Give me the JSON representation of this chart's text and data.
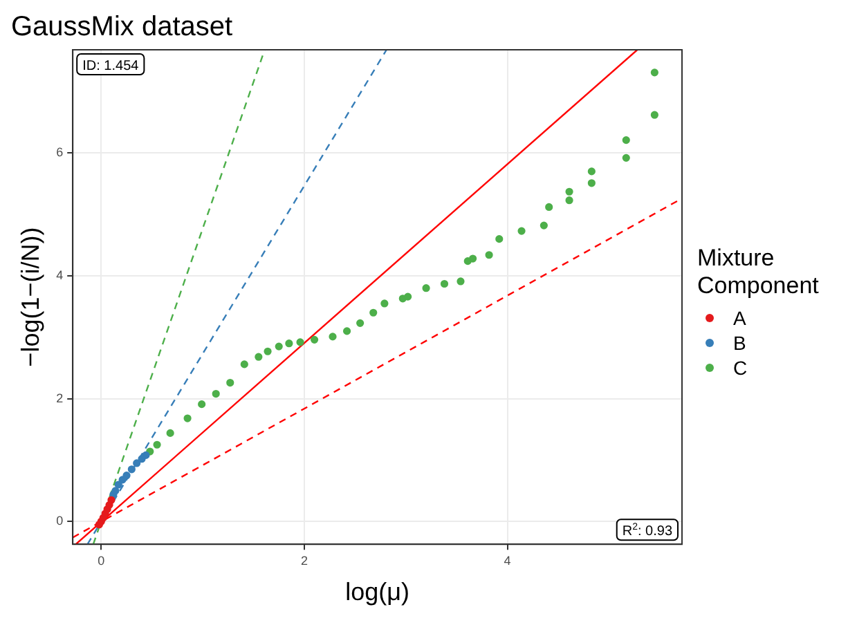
{
  "chart_data": {
    "type": "scatter",
    "title": "GaussMix dataset",
    "xlabel": "log(μ)",
    "ylabel": "−log(1−(i/N))",
    "legend_title": "Mixture Component",
    "legend": "right",
    "grid": true,
    "xlim": [
      -0.28,
      5.72
    ],
    "ylim": [
      -0.37,
      7.68
    ],
    "xticks": [
      0,
      2,
      4
    ],
    "yticks": [
      0,
      2,
      4,
      6
    ],
    "annotations": [
      "ID: 1.454",
      "R$^{2}$: 0.93"
    ],
    "series": [
      {
        "type": "line",
        "marker": "none",
        "color": "#4daf4a",
        "line_style": "dashed",
        "x": [
          -0.078,
          1.61
        ],
        "values": [
          -0.37,
          7.68
        ]
      },
      {
        "type": "line",
        "marker": "none",
        "color": "#377eb8",
        "line_style": "dashed",
        "x": [
          -0.135,
          2.81
        ],
        "values": [
          -0.37,
          7.68
        ]
      },
      {
        "type": "line",
        "marker": "none",
        "color": "#ff0000",
        "line_style": "solid",
        "x": [
          -0.25,
          5.28
        ],
        "values": [
          -0.37,
          7.68
        ]
      },
      {
        "type": "line",
        "marker": "none",
        "color": "#ff0000",
        "line_style": "dashed",
        "x": [
          -0.28,
          5.72
        ],
        "values": [
          -0.26,
          5.26
        ]
      },
      {
        "name": "A",
        "marker": "circle",
        "color": "#e41a1c",
        "x": [
          -0.02,
          0,
          0.02,
          0.04,
          0.06,
          0.08,
          0.1
        ],
        "values": [
          -0.05,
          0,
          0.06,
          0.13,
          0.2,
          0.27,
          0.35
        ]
      },
      {
        "name": "B",
        "marker": "circle",
        "color": "#377eb8",
        "x": [
          0.12,
          0.14,
          0.17,
          0.21,
          0.25,
          0.3,
          0.35,
          0.4,
          0.44
        ],
        "values": [
          0.44,
          0.5,
          0.6,
          0.68,
          0.75,
          0.85,
          0.95,
          1.02,
          1.08
        ]
      },
      {
        "name": "C",
        "marker": "circle",
        "color": "#4daf4a",
        "x": [
          0.48,
          0.55,
          0.68,
          0.85,
          0.99,
          1.13,
          1.27,
          1.41,
          1.55,
          1.64,
          1.75,
          1.85,
          1.96,
          2.1,
          2.28,
          2.42,
          2.55,
          2.68,
          2.79,
          2.97,
          3.02,
          3.2,
          3.38,
          3.54,
          3.61,
          3.66,
          3.82,
          3.92,
          4.14,
          4.36,
          4.41,
          4.61,
          4.61,
          4.83,
          4.83,
          5.17,
          5.17,
          5.45,
          5.45
        ],
        "values": [
          1.14,
          1.25,
          1.44,
          1.68,
          1.91,
          2.08,
          2.26,
          2.56,
          2.68,
          2.77,
          2.85,
          2.9,
          2.92,
          2.96,
          3.01,
          3.1,
          3.23,
          3.4,
          3.55,
          3.63,
          3.66,
          3.8,
          3.87,
          3.91,
          4.24,
          4.28,
          4.34,
          4.6,
          4.73,
          4.82,
          5.12,
          5.23,
          5.37,
          5.51,
          5.7,
          5.92,
          6.21,
          6.62,
          7.31
        ]
      }
    ]
  }
}
